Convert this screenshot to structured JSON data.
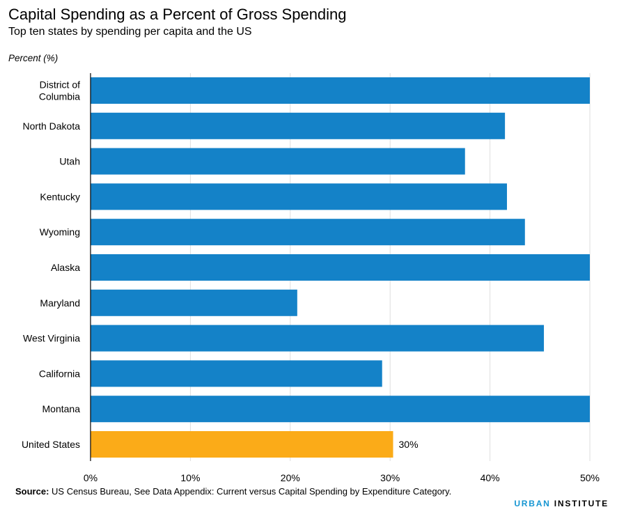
{
  "title": "Capital Spending as a Percent of Gross Spending",
  "subtitle": "Top ten states by spending per capita and the US",
  "unit_label": "Percent (%)",
  "source": {
    "label": "Source:",
    "text": " US Census Bureau, See Data Appendix: Current versus Capital Spending by Expenditure Category."
  },
  "logo": {
    "part1": "URBAN",
    "part2": " INSTITUTE"
  },
  "colors": {
    "states": "#1482c8",
    "us": "#fbab18",
    "grid": "#dedede",
    "axis": "#000000"
  },
  "chart_data": {
    "type": "bar",
    "orientation": "horizontal",
    "categories": [
      "District of Columbia",
      "North Dakota",
      "Utah",
      "Kentucky",
      "Wyoming",
      "Alaska",
      "Maryland",
      "West Virginia",
      "California",
      "Montana",
      "United States"
    ],
    "category_lines": [
      [
        "District of",
        "Columbia"
      ],
      [
        "North Dakota"
      ],
      [
        "Utah"
      ],
      [
        "Kentucky"
      ],
      [
        "Wyoming"
      ],
      [
        "Alaska"
      ],
      [
        "Maryland"
      ],
      [
        "West Virginia"
      ],
      [
        "California"
      ],
      [
        "Montana"
      ],
      [
        "United States"
      ]
    ],
    "values": [
      50,
      41.5,
      37.5,
      41.7,
      43.5,
      50,
      20.7,
      45.4,
      29.2,
      50,
      30.3
    ],
    "highlight": [
      false,
      false,
      false,
      false,
      false,
      false,
      false,
      false,
      false,
      false,
      true
    ],
    "data_labels": [
      "",
      "",
      "",
      "",
      "",
      "",
      "",
      "",
      "",
      "",
      "30%"
    ],
    "xlim": [
      0,
      50
    ],
    "xticks": [
      0,
      10,
      20,
      30,
      40,
      50
    ],
    "xtick_labels": [
      "0%",
      "10%",
      "20%",
      "30%",
      "40%",
      "50%"
    ],
    "grid": true,
    "legend": "none"
  }
}
